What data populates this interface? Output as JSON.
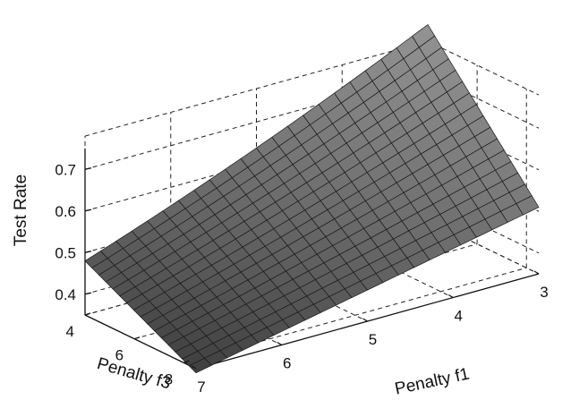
{
  "chart_data": {
    "type": "surface",
    "title": "",
    "xlabel": "Penalty f1",
    "ylabel": "Penalty f3",
    "zlabel": "Test Rate",
    "x_ticks": [
      "3",
      "4",
      "5",
      "6",
      "7"
    ],
    "y_ticks": [
      "4",
      "6",
      "8"
    ],
    "z_ticks": [
      "0.4",
      "0.5",
      "0.6",
      "0.7"
    ],
    "xlim": [
      3,
      7
    ],
    "ylim": [
      4,
      8.5
    ],
    "zlim": [
      0.35,
      0.78
    ],
    "grid": true,
    "colormap": "gray",
    "surface_corners": [
      {
        "f1": 7,
        "f3": 4,
        "test_rate": 0.48
      },
      {
        "f1": 3,
        "f3": 4,
        "test_rate": 0.77
      },
      {
        "f1": 3,
        "f3": 8.5,
        "test_rate": 0.51
      },
      {
        "f1": 7,
        "f3": 8.5,
        "test_rate": 0.34
      }
    ]
  }
}
